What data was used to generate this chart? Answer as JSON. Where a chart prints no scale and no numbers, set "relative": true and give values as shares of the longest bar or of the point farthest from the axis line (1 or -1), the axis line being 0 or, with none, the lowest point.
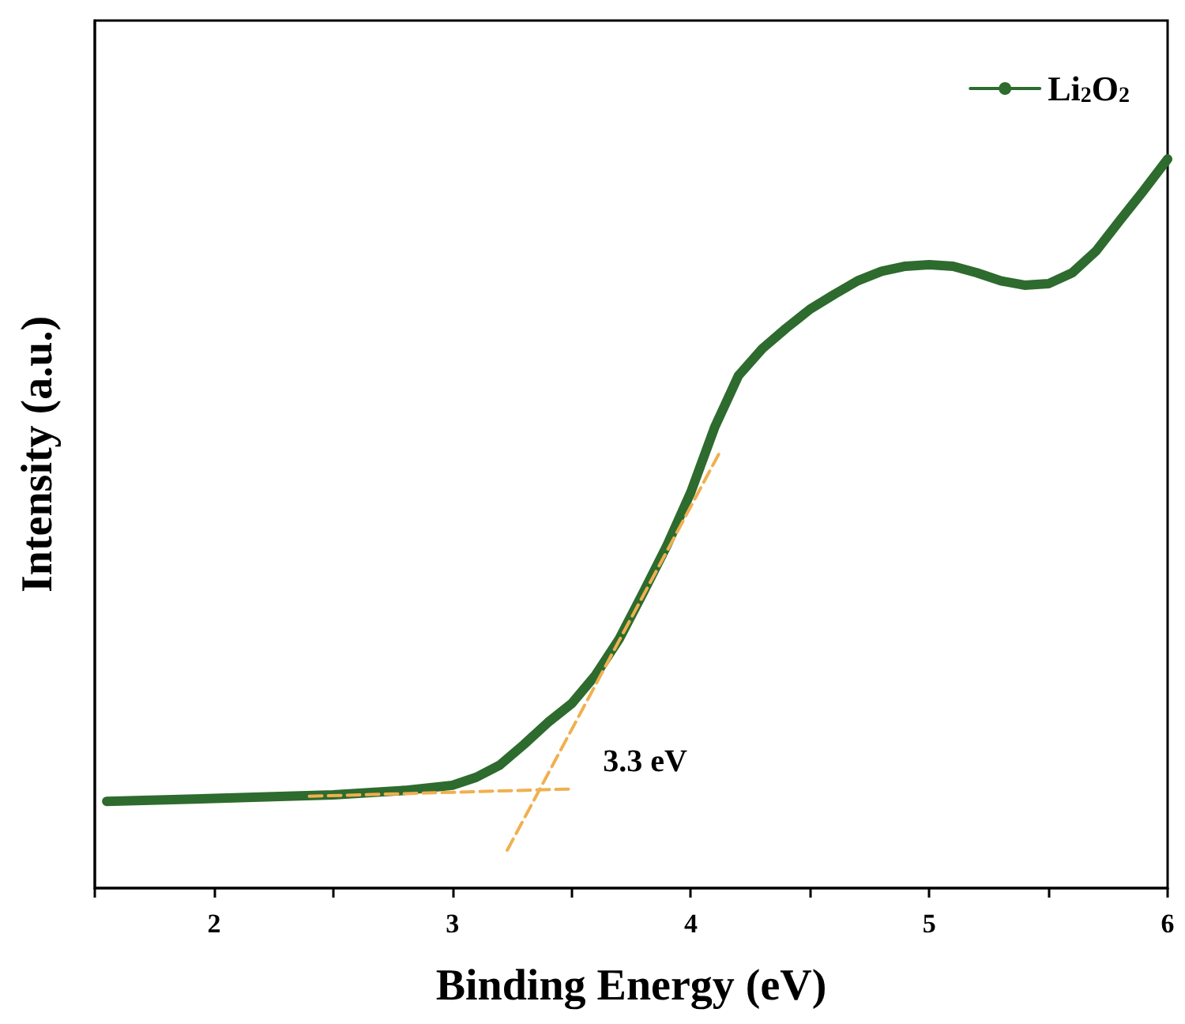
{
  "chart_data": {
    "type": "line",
    "xlabel": "Binding Energy (eV)",
    "ylabel": "Intensity (a.u.)",
    "relative": true,
    "xlim": [
      1.5,
      6
    ],
    "xticks": [
      {
        "value": 1.5,
        "label": null
      },
      2,
      {
        "value": 2.5,
        "label": null
      },
      3,
      {
        "value": 3.5,
        "label": null
      },
      4,
      {
        "value": 4.5,
        "label": null
      },
      5,
      {
        "value": 5.5,
        "label": null
      },
      6
    ],
    "tick_labels": "x",
    "grid": false,
    "legend": "top right",
    "series": [
      {
        "name": "Li$_{2}$O$_{2}$",
        "color": "#2e6b2e",
        "marker": "circle",
        "line_style": "solid",
        "x": [
          1.55,
          2.0,
          2.5,
          2.8,
          3.0,
          3.1,
          3.2,
          3.3,
          3.4,
          3.5,
          3.6,
          3.7,
          3.8,
          3.9,
          4.0,
          4.1,
          4.2,
          4.3,
          4.4,
          4.5,
          4.6,
          4.7,
          4.8,
          4.9,
          5.0,
          5.1,
          5.2,
          5.3,
          5.4,
          5.5,
          5.6,
          5.7,
          5.8,
          5.9,
          6.0
        ],
        "values": [
          0.119,
          0.123,
          0.128,
          0.134,
          0.141,
          0.152,
          0.169,
          0.197,
          0.227,
          0.253,
          0.292,
          0.342,
          0.405,
          0.47,
          0.543,
          0.632,
          0.703,
          0.74,
          0.768,
          0.794,
          0.814,
          0.833,
          0.846,
          0.853,
          0.855,
          0.853,
          0.844,
          0.833,
          0.827,
          0.829,
          0.844,
          0.874,
          0.916,
          0.957,
          1.0
        ]
      },
      {
        "color": "#f0b050",
        "marker": "none",
        "line_style": "dashed",
        "x": [
          2.4,
          3.5
        ],
        "values": [
          0.126,
          0.136
        ]
      },
      {
        "color": "#f0b050",
        "marker": "none",
        "line_style": "dashed",
        "x": [
          3.23,
          4.12
        ],
        "values": [
          0.052,
          0.597
        ]
      }
    ],
    "annotations": [
      {
        "text": "3.3 eV",
        "x": 3.3,
        "y": 0.13
      }
    ]
  }
}
